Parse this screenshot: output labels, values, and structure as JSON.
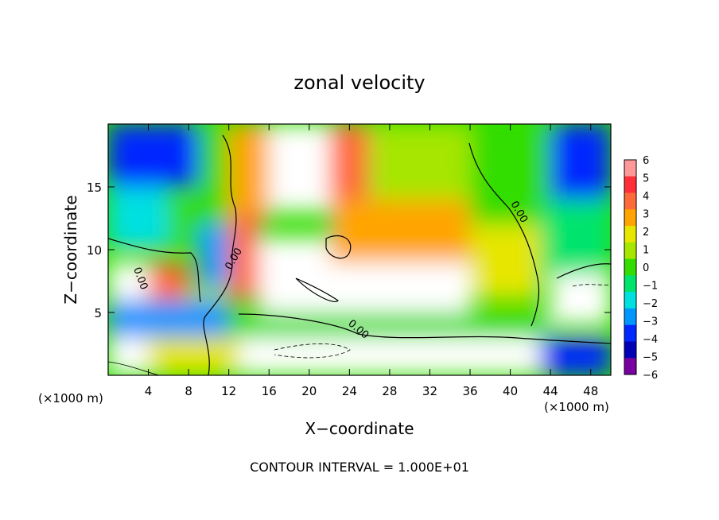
{
  "chart_data": {
    "type": "heatmap",
    "title": "zonal velocity",
    "xlabel": "X−coordinate",
    "ylabel": "Z−coordinate",
    "x_unit_left": "(×1000 m)",
    "x_unit_right": "(×1000 m)",
    "footer": "CONTOUR INTERVAL = 1.000E+01",
    "contour_label": "0.00",
    "xlim": [
      0,
      50
    ],
    "ylim": [
      0,
      20
    ],
    "x_ticks": [
      4,
      8,
      12,
      16,
      20,
      24,
      28,
      32,
      36,
      40,
      44,
      48
    ],
    "y_ticks": [
      5,
      10,
      15
    ],
    "colorbar": {
      "min": -6,
      "max": 6,
      "labels": [
        "6",
        "5",
        "4",
        "3",
        "2",
        "1",
        "0",
        "−1",
        "−2",
        "−3",
        "−4",
        "−5",
        "−6"
      ],
      "colors": [
        "#ff9999",
        "#ff2f3a",
        "#ff6a3a",
        "#ffa400",
        "#e6e600",
        "#a6e600",
        "#33dd00",
        "#00e46e",
        "#00e0e0",
        "#0096ff",
        "#0028ff",
        "#0000b4",
        "#7800a0"
      ]
    },
    "regions": [
      {
        "x0": 0,
        "x1": 9,
        "z0": 15,
        "z1": 20,
        "value": -4
      },
      {
        "x0": 9,
        "x1": 12,
        "z0": 14,
        "z1": 20,
        "value": 0
      },
      {
        "x0": 12,
        "x1": 16,
        "z0": 12,
        "z1": 20,
        "value": 3
      },
      {
        "x0": 16,
        "x1": 22,
        "z0": 13,
        "z1": 20,
        "value": 7
      },
      {
        "x0": 22,
        "x1": 26,
        "z0": 14,
        "z1": 20,
        "value": 4
      },
      {
        "x0": 26,
        "x1": 36,
        "z0": 13,
        "z1": 20,
        "value": 1
      },
      {
        "x0": 36,
        "x1": 44,
        "z0": 12,
        "z1": 20,
        "value": 0
      },
      {
        "x0": 44,
        "x1": 50,
        "z0": 14,
        "z1": 20,
        "value": -4
      },
      {
        "x0": 0,
        "x1": 6,
        "z0": 10,
        "z1": 15,
        "value": -2
      },
      {
        "x0": 6,
        "x1": 12,
        "z0": 10,
        "z1": 14,
        "value": 0
      },
      {
        "x0": 9,
        "x1": 12,
        "z0": 7,
        "z1": 12,
        "value": -3
      },
      {
        "x0": 12,
        "x1": 15,
        "z0": 6,
        "z1": 13,
        "value": 4
      },
      {
        "x0": 15,
        "x1": 22,
        "z0": 5,
        "z1": 11,
        "value": 7
      },
      {
        "x0": 22,
        "x1": 36,
        "z0": 9,
        "z1": 14,
        "value": 3
      },
      {
        "x0": 22,
        "x1": 36,
        "z0": 5,
        "z1": 9,
        "value": 7
      },
      {
        "x0": 36,
        "x1": 43,
        "z0": 6,
        "z1": 12,
        "value": 2
      },
      {
        "x0": 43,
        "x1": 50,
        "z0": 8,
        "z1": 14,
        "value": -1
      },
      {
        "x0": 0,
        "x1": 4,
        "z0": 6,
        "z1": 9,
        "value": -7
      },
      {
        "x0": 4,
        "x1": 8,
        "z0": 6,
        "z1": 9,
        "value": 4
      },
      {
        "x0": 8,
        "x1": 12,
        "z0": 4,
        "z1": 7,
        "value": 1
      },
      {
        "x0": 12,
        "x1": 44,
        "z0": 3,
        "z1": 5,
        "value": 0
      },
      {
        "x0": 0,
        "x1": 12,
        "z0": 3,
        "z1": 6,
        "value": -3
      },
      {
        "x0": 44,
        "x1": 50,
        "z0": 4,
        "z1": 8,
        "value": -7
      },
      {
        "x0": 0,
        "x1": 4,
        "z0": 0,
        "z1": 3,
        "value": -7
      },
      {
        "x0": 4,
        "x1": 13,
        "z0": 0,
        "z1": 3,
        "value": 2
      },
      {
        "x0": 13,
        "x1": 43,
        "z0": 0,
        "z1": 3,
        "value": -7
      },
      {
        "x0": 43,
        "x1": 50,
        "z0": 0,
        "z1": 3,
        "value": -4
      }
    ]
  }
}
